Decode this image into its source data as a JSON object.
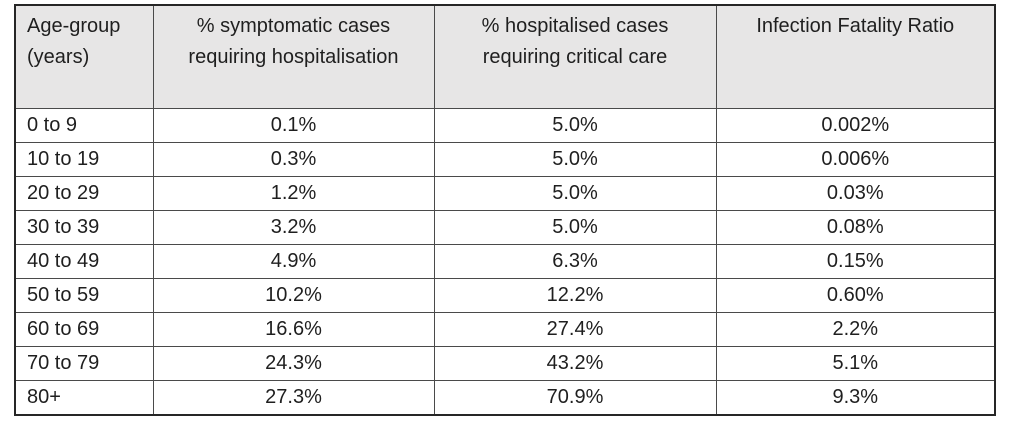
{
  "table": {
    "name": "age-group-severity-table",
    "columns": [
      {
        "lines": [
          "Age-group",
          "(years)"
        ],
        "align": "left"
      },
      {
        "lines": [
          "% symptomatic cases",
          "requiring hospitalisation"
        ],
        "align": "center"
      },
      {
        "lines": [
          "% hospitalised cases",
          "requiring critical care"
        ],
        "align": "center"
      },
      {
        "lines": [
          "Infection Fatality Ratio"
        ],
        "align": "center"
      }
    ],
    "rows": [
      [
        "0 to 9",
        "0.1%",
        "5.0%",
        "0.002%"
      ],
      [
        "10 to 19",
        "0.3%",
        "5.0%",
        "0.006%"
      ],
      [
        "20 to 29",
        "1.2%",
        "5.0%",
        "0.03%"
      ],
      [
        "30 to 39",
        "3.2%",
        "5.0%",
        "0.08%"
      ],
      [
        "40 to 49",
        "4.9%",
        "6.3%",
        "0.15%"
      ],
      [
        "50 to 59",
        "10.2%",
        "12.2%",
        "0.60%"
      ],
      [
        "60 to 69",
        "16.6%",
        "27.4%",
        "2.2%"
      ],
      [
        "70 to 79",
        "24.3%",
        "43.2%",
        "5.1%"
      ],
      [
        "80+",
        "27.3%",
        "70.9%",
        "9.3%"
      ]
    ],
    "colors": {
      "header_bg": "#e7e6e6",
      "border": "#4a4a4a",
      "outer_border": "#262626",
      "text": "#1f1f1f"
    }
  }
}
